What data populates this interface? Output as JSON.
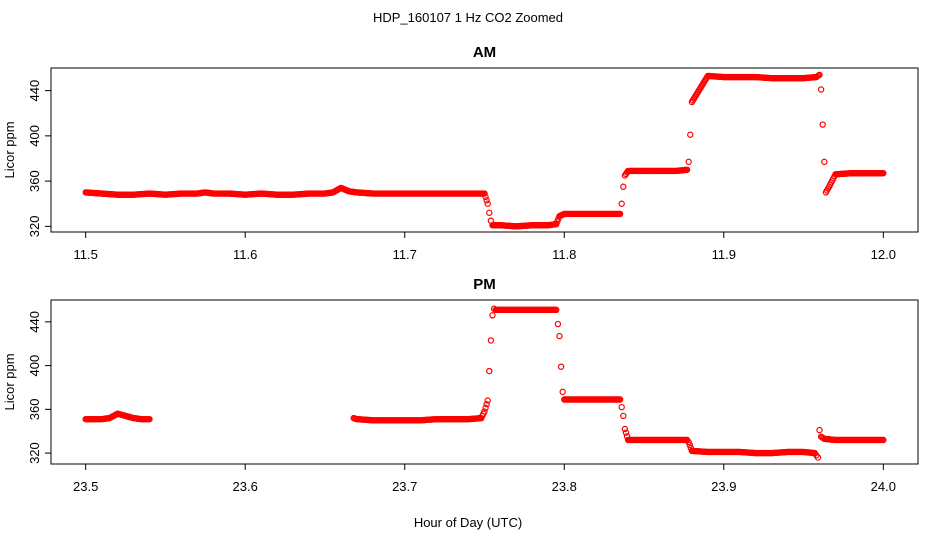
{
  "figure": {
    "title": "HDP_160107  1 Hz CO2 Zoomed",
    "xlabel": "Hour of Day (UTC)",
    "marker_color": "#ff0000"
  },
  "chart_data": [
    {
      "type": "scatter",
      "title": "AM",
      "xlabel": "",
      "ylabel": "Licor ppm",
      "xlim": [
        11.5,
        12.0
      ],
      "ylim": [
        315,
        460
      ],
      "xticks": [
        11.5,
        11.6,
        11.7,
        11.8,
        11.9,
        12.0
      ],
      "xtick_labels": [
        "11.5",
        "11.6",
        "11.7",
        "11.8",
        "11.9",
        "12.0"
      ],
      "yticks": [
        320,
        360,
        400,
        440
      ],
      "ytick_labels": [
        "320",
        "360",
        "400",
        "440"
      ],
      "grid": false,
      "series": [
        {
          "marker": "open-circle",
          "x": [
            11.5,
            11.51,
            11.52,
            11.53,
            11.54,
            11.55,
            11.56,
            11.57,
            11.575,
            11.58,
            11.59,
            11.6,
            11.61,
            11.62,
            11.63,
            11.64,
            11.65,
            11.655,
            11.66,
            11.665,
            11.67,
            11.68,
            11.69,
            11.7,
            11.71,
            11.72,
            11.73,
            11.74,
            11.75,
            11.752,
            11.753,
            11.754,
            11.755,
            11.76,
            11.77,
            11.78,
            11.79,
            11.795,
            11.797,
            11.8,
            11.81,
            11.82,
            11.83,
            11.835,
            11.836,
            11.837,
            11.838,
            11.84,
            11.85,
            11.86,
            11.87,
            11.877,
            11.878,
            11.879,
            11.88,
            11.89,
            11.9,
            11.91,
            11.92,
            11.93,
            11.94,
            11.95,
            11.958,
            11.96,
            11.961,
            11.962,
            11.963,
            11.964,
            11.966,
            11.97,
            11.98,
            11.99,
            12.0
          ],
          "y": [
            350,
            349,
            348,
            348,
            349,
            348,
            349,
            349,
            350,
            349,
            349,
            348,
            349,
            348,
            348,
            349,
            349,
            350,
            354,
            351,
            350,
            349,
            349,
            349,
            349,
            349,
            349,
            349,
            349,
            340,
            332,
            325,
            321,
            321,
            320,
            321,
            321,
            322,
            329,
            331,
            331,
            331,
            331,
            331,
            340,
            355,
            365,
            369,
            369,
            369,
            369,
            370,
            377,
            401,
            430,
            453,
            452,
            452,
            452,
            451,
            451,
            451,
            452,
            454,
            441,
            410,
            377,
            350,
            355,
            366,
            367,
            367,
            367
          ]
        }
      ]
    },
    {
      "type": "scatter",
      "title": "PM",
      "xlabel": "Hour of Day (UTC)",
      "ylabel": "Licor ppm",
      "xlim": [
        23.5,
        24.0
      ],
      "ylim": [
        310,
        460
      ],
      "xticks": [
        23.5,
        23.6,
        23.7,
        23.8,
        23.9,
        24.0
      ],
      "xtick_labels": [
        "23.5",
        "23.6",
        "23.7",
        "23.8",
        "23.9",
        "24.0"
      ],
      "yticks": [
        320,
        360,
        400,
        440
      ],
      "ytick_labels": [
        "320",
        "360",
        "400",
        "440"
      ],
      "grid": false,
      "series": [
        {
          "marker": "open-circle",
          "x": [
            23.5,
            23.505,
            23.51,
            23.515,
            23.52,
            23.525,
            23.53,
            23.535,
            23.54,
            23.668,
            23.67,
            23.68,
            23.69,
            23.7,
            23.71,
            23.72,
            23.73,
            23.74,
            23.748,
            23.75,
            23.752,
            23.753,
            23.754,
            23.755,
            23.756,
            23.757,
            23.76,
            23.77,
            23.78,
            23.79,
            23.795,
            23.796,
            23.797,
            23.798,
            23.799,
            23.8,
            23.81,
            23.82,
            23.83,
            23.835,
            23.836,
            23.837,
            23.838,
            23.84,
            23.85,
            23.86,
            23.87,
            23.877,
            23.878,
            23.88,
            23.89,
            23.9,
            23.91,
            23.92,
            23.93,
            23.94,
            23.95,
            23.957,
            23.958,
            23.959,
            23.96,
            23.961,
            23.963,
            23.97,
            23.98,
            23.99,
            24.0
          ],
          "y": [
            351,
            351,
            351,
            352,
            356,
            354,
            352,
            351,
            351,
            352,
            351,
            350,
            350,
            350,
            350,
            351,
            351,
            351,
            352,
            358,
            368,
            395,
            423,
            446,
            452,
            451,
            451,
            451,
            451,
            451,
            451,
            438,
            427,
            399,
            376,
            369,
            369,
            369,
            369,
            369,
            362,
            354,
            342,
            332,
            332,
            332,
            332,
            332,
            330,
            322,
            321,
            321,
            321,
            320,
            320,
            321,
            321,
            320,
            318,
            316,
            341,
            335,
            333,
            332,
            332,
            332,
            332
          ]
        }
      ]
    }
  ]
}
